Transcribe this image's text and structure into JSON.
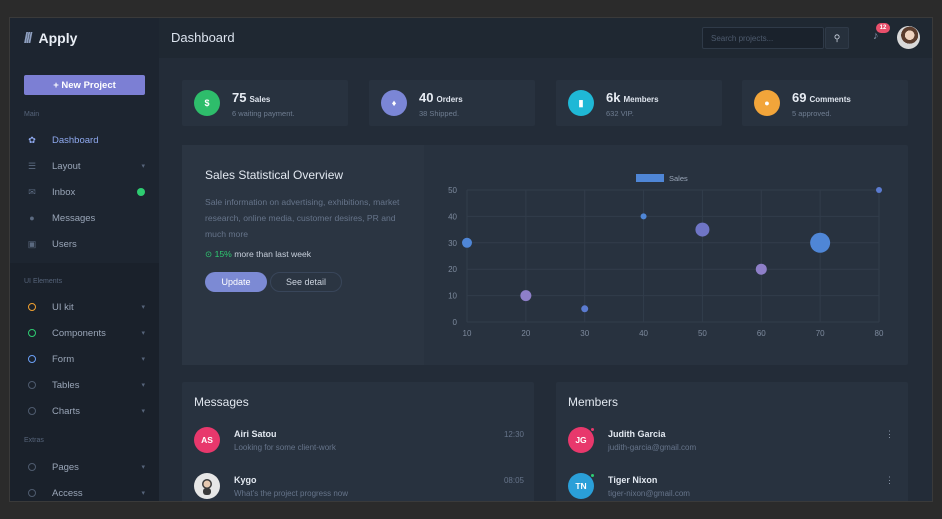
{
  "brand": {
    "name": "Apply"
  },
  "sidebar": {
    "new_project": "+ New Project",
    "main_label": "Main",
    "main_items": [
      {
        "label": "Dashboard",
        "icon": "palette-icon",
        "active": true
      },
      {
        "label": "Layout",
        "icon": "layout-icon",
        "has_children": true
      },
      {
        "label": "Inbox",
        "icon": "inbox-icon",
        "badge_color": "#2ecc71"
      },
      {
        "label": "Messages",
        "icon": "chat-icon"
      },
      {
        "label": "Users",
        "icon": "users-icon"
      }
    ],
    "ui_label": "UI Elements",
    "ui_items": [
      {
        "label": "UI kit",
        "ring_color": "#f0a030"
      },
      {
        "label": "Components",
        "ring_color": "#2ecc71"
      },
      {
        "label": "Form",
        "ring_color": "#6a9ff5"
      },
      {
        "label": "Tables",
        "ring_color": "#4e5b6e"
      },
      {
        "label": "Charts",
        "ring_color": "#4e5b6e"
      }
    ],
    "extras_label": "Extras",
    "extras_items": [
      {
        "label": "Pages"
      },
      {
        "label": "Access"
      }
    ]
  },
  "topbar": {
    "title": "Dashboard",
    "search_placeholder": "Search projects...",
    "notifications": "12"
  },
  "stats": [
    {
      "value": "75",
      "unit": "Sales",
      "sub": "6 waiting payment.",
      "color": "#2ebd6b",
      "glyph": "$"
    },
    {
      "value": "40",
      "unit": "Orders",
      "sub": "38 Shipped.",
      "color": "#7b86d6",
      "glyph": "♦"
    },
    {
      "value": "6k",
      "unit": "Members",
      "sub": "632 VIP.",
      "color": "#1fb8d6",
      "glyph": "▮"
    },
    {
      "value": "69",
      "unit": "Comments",
      "sub": "5 approved.",
      "color": "#f2a53a",
      "glyph": "●"
    }
  ],
  "overview": {
    "title": "Sales Statistical Overview",
    "description": "Sale information on advertising, exhibitions, market research, online media, customer desires, PR and much more",
    "trend_pct": "15%",
    "trend_text": "more than last week",
    "update_label": "Update",
    "detail_label": "See detail"
  },
  "chart_data": {
    "type": "scatter",
    "legend": [
      "Sales"
    ],
    "legend_position": "top",
    "xlim": [
      10,
      80
    ],
    "ylim": [
      0,
      50
    ],
    "x_ticks": [
      10,
      20,
      30,
      40,
      50,
      60,
      70,
      80
    ],
    "y_ticks": [
      0,
      10,
      20,
      30,
      40,
      50
    ],
    "grid": true,
    "series": [
      {
        "name": "Sales",
        "points": [
          {
            "x": 10,
            "y": 30,
            "r": 5,
            "color": "#4f86d6"
          },
          {
            "x": 20,
            "y": 10,
            "r": 5.5,
            "color": "#8e7fc8"
          },
          {
            "x": 30,
            "y": 5,
            "r": 3.5,
            "color": "#5b7bd0"
          },
          {
            "x": 40,
            "y": 40,
            "r": 3,
            "color": "#4f86d6"
          },
          {
            "x": 50,
            "y": 35,
            "r": 7,
            "color": "#6f75c6"
          },
          {
            "x": 60,
            "y": 20,
            "r": 5.5,
            "color": "#8e7fc8"
          },
          {
            "x": 70,
            "y": 30,
            "r": 10,
            "color": "#4f86d6"
          },
          {
            "x": 80,
            "y": 50,
            "r": 3,
            "color": "#5b7bd0"
          }
        ]
      }
    ]
  },
  "messages": {
    "title": "Messages",
    "items": [
      {
        "initials": "AS",
        "name": "Airi Satou",
        "text": "Looking for some client-work",
        "time": "12:30",
        "color": "#e8386c"
      },
      {
        "initials": "",
        "name": "Kygo",
        "text": "What's the project progress now",
        "time": "08:05",
        "color": "#e6e6e6"
      }
    ]
  },
  "members": {
    "title": "Members",
    "items": [
      {
        "initials": "JG",
        "name": "Judith Garcia",
        "email": "judith-garcia@gmail.com",
        "color": "#e8386c",
        "status": "#e8386c"
      },
      {
        "initials": "TN",
        "name": "Tiger Nixon",
        "email": "tiger-nixon@gmail.com",
        "color": "#2a9fd8",
        "status": "#2ecc71"
      }
    ]
  }
}
